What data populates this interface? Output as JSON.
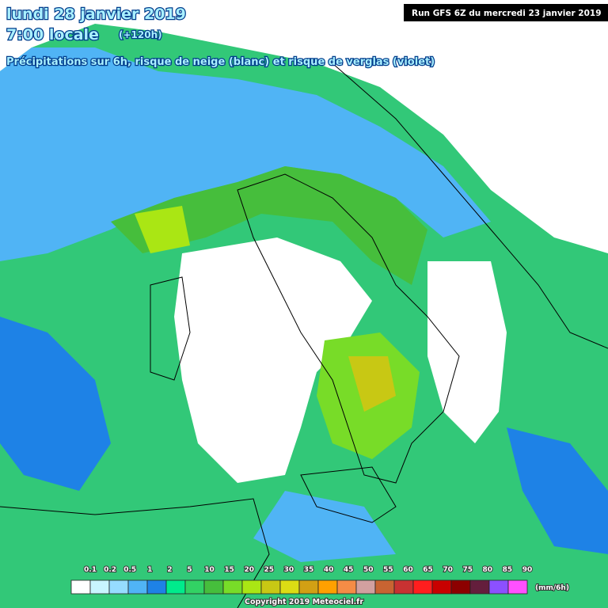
{
  "header": {
    "date": "lundi 28 janvier 2019",
    "time": "7:00 locale",
    "lead": "(+120h)",
    "subtitle": "Précipitations sur 6h, risque de neige (blanc) et risque de verglas (violet)",
    "run": "Run GFS 6Z du mercredi 23 janvier 2019"
  },
  "legend": {
    "labels": [
      "0.1",
      "0.2",
      "0.5",
      "1",
      "2",
      "5",
      "10",
      "15",
      "20",
      "25",
      "30",
      "35",
      "40",
      "45",
      "50",
      "55",
      "60",
      "65",
      "70",
      "75",
      "80",
      "85",
      "90"
    ],
    "colors": [
      "#ffffff",
      "#c8f5ff",
      "#96dcff",
      "#50b4f5",
      "#1e82e6",
      "#00eb8c",
      "#32d264",
      "#46be3c",
      "#78dc28",
      "#aae614",
      "#c8c814",
      "#dcdc14",
      "#d2a014",
      "#ffa000",
      "#f58c46",
      "#d2a0a0",
      "#c86432",
      "#c83232",
      "#ff1e1e",
      "#c80000",
      "#8c0000",
      "#641e3c",
      "#8c50ff",
      "#ff50ff"
    ],
    "unit": "(mm/6h)"
  },
  "footer": {
    "copyright": "Copyright 2019 Meteociel.fr"
  }
}
